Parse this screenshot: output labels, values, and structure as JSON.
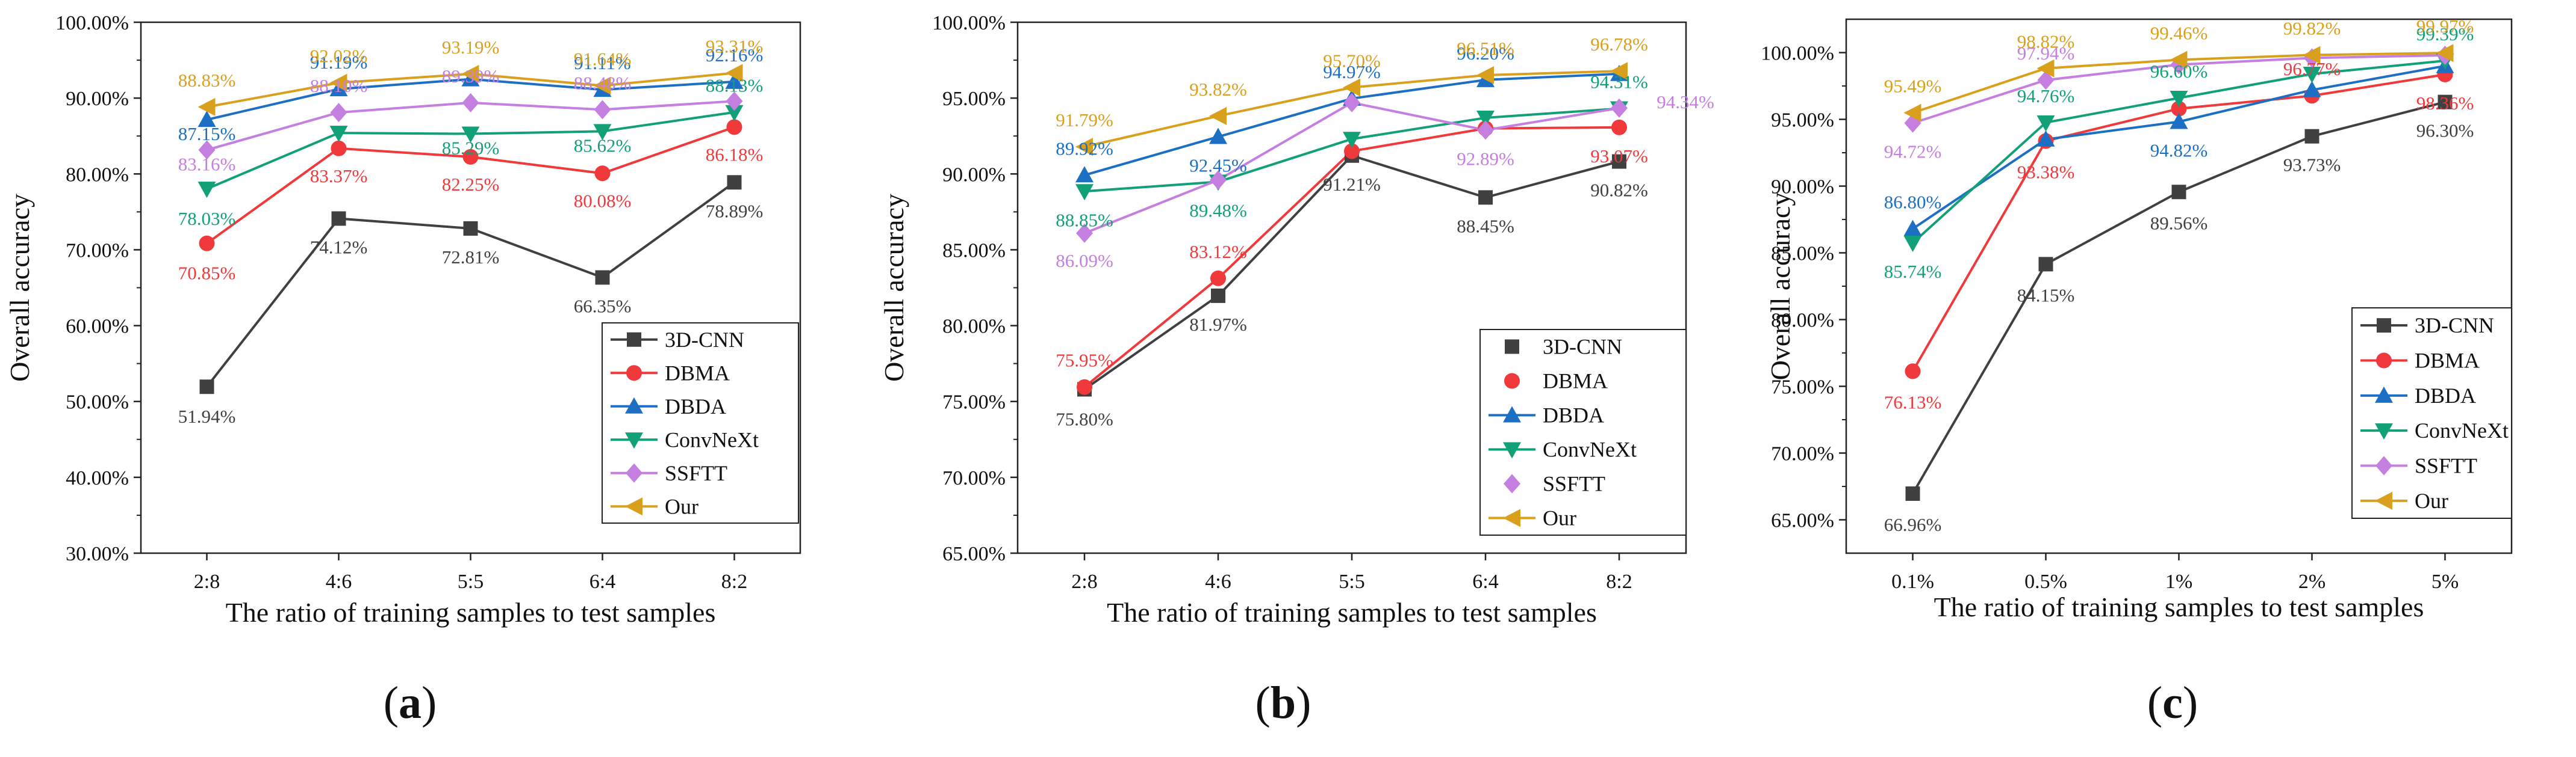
{
  "chart_data": [
    {
      "panel_label": "(a)",
      "type": "line",
      "xlabel": "The ratio of training samples to test samples",
      "ylabel": "Overall accuracy",
      "categories": [
        "2:8",
        "4:6",
        "5:5",
        "6:4",
        "8:2"
      ],
      "ylim": [
        30,
        100
      ],
      "yticks": [
        "30.00%",
        "40.00%",
        "50.00%",
        "60.00%",
        "70.00%",
        "80.00%",
        "90.00%",
        "100.00%"
      ],
      "legend_position": "lower-right",
      "series": [
        {
          "name": "3D-CNN",
          "color": "#404040",
          "marker": "square",
          "values": [
            51.94,
            74.12,
            72.81,
            66.35,
            78.89
          ],
          "labels": [
            "51.94%",
            "74.12%",
            "72.81%",
            "66.35%",
            "78.89%"
          ]
        },
        {
          "name": "DBMA",
          "color": "#f0393b",
          "marker": "circle",
          "values": [
            70.85,
            83.37,
            82.25,
            80.08,
            86.18
          ],
          "labels": [
            "70.85%",
            "83.37%",
            "82.25%",
            "80.08%",
            "86.18%"
          ]
        },
        {
          "name": "DBDA",
          "color": "#1d6fc4",
          "marker": "triangle-up",
          "values": [
            87.15,
            91.19,
            92.5,
            91.11,
            92.16
          ],
          "labels": [
            "87.15%",
            "91.19%",
            "",
            "91.11%",
            "92.16%"
          ]
        },
        {
          "name": "ConvNeXt",
          "color": "#12a079",
          "marker": "triangle-down",
          "values": [
            78.03,
            85.4,
            85.29,
            85.62,
            88.13
          ],
          "labels": [
            "78.03%",
            "",
            "85.29%",
            "85.62%",
            "88.13%"
          ]
        },
        {
          "name": "SSFTT",
          "color": "#c47fe0",
          "marker": "diamond",
          "values": [
            83.16,
            88.1,
            89.39,
            88.48,
            89.6
          ],
          "labels": [
            "83.16%",
            "88.10%",
            "89.39%",
            "88.48%",
            ""
          ]
        },
        {
          "name": "Our",
          "color": "#d9a01e",
          "marker": "triangle-left",
          "values": [
            88.83,
            92.02,
            93.19,
            91.64,
            93.31
          ],
          "labels": [
            "88.83%",
            "92.02%",
            "93.19%",
            "91.64%",
            "93.31%"
          ]
        }
      ]
    },
    {
      "panel_label": "(b)",
      "type": "line",
      "xlabel": "The ratio of training samples to test samples",
      "ylabel": "Overall accuracy",
      "categories": [
        "2:8",
        "4:6",
        "5:5",
        "6:4",
        "8:2"
      ],
      "ylim": [
        65,
        100
      ],
      "yticks": [
        "65.00%",
        "70.00%",
        "75.00%",
        "80.00%",
        "85.00%",
        "90.00%",
        "95.00%",
        "100.00%"
      ],
      "legend_position": "lower-right",
      "series": [
        {
          "name": "3D-CNN",
          "color": "#404040",
          "marker": "square",
          "values": [
            75.8,
            81.97,
            91.21,
            88.45,
            90.82
          ],
          "labels": [
            "75.80%",
            "81.97%",
            "91.21%",
            "88.45%",
            "90.82%"
          ]
        },
        {
          "name": "DBMA",
          "color": "#f0393b",
          "marker": "circle",
          "values": [
            75.95,
            83.12,
            91.5,
            93.0,
            93.07
          ],
          "labels": [
            "75.95%",
            "83.12%",
            "",
            "",
            "93.07%"
          ]
        },
        {
          "name": "DBDA",
          "color": "#1d6fc4",
          "marker": "triangle-up",
          "values": [
            89.92,
            92.45,
            94.97,
            96.2,
            96.6
          ],
          "labels": [
            "89.92%",
            "92.45%",
            "94.97%",
            "96.20%",
            ""
          ]
        },
        {
          "name": "ConvNeXt",
          "color": "#12a079",
          "marker": "triangle-down",
          "values": [
            88.85,
            89.48,
            92.3,
            93.7,
            94.31
          ],
          "labels": [
            "88.85%",
            "89.48%",
            "",
            "",
            "94.31%"
          ]
        },
        {
          "name": "SSFTT",
          "color": "#c47fe0",
          "marker": "diamond",
          "values": [
            86.09,
            89.6,
            94.7,
            92.89,
            94.34
          ],
          "labels": [
            "86.09%",
            "",
            "",
            "92.89%",
            "94.34%"
          ]
        },
        {
          "name": "Our",
          "color": "#d9a01e",
          "marker": "triangle-left",
          "values": [
            91.79,
            93.82,
            95.7,
            96.51,
            96.78
          ],
          "labels": [
            "91.79%",
            "93.82%",
            "95.70%",
            "96.51%",
            "96.78%"
          ]
        }
      ]
    },
    {
      "panel_label": "(c)",
      "type": "line",
      "xlabel": "The ratio of training samples to test samples",
      "ylabel": "Overall accuracy",
      "categories": [
        "0.1%",
        "0.5%",
        "1%",
        "2%",
        "5%"
      ],
      "ylim": [
        62.5,
        102.5
      ],
      "yticks": [
        "65.00%",
        "70.00%",
        "75.00%",
        "80.00%",
        "85.00%",
        "90.00%",
        "95.00%",
        "100.00%"
      ],
      "ytick_values": [
        65,
        70,
        75,
        80,
        85,
        90,
        95,
        100
      ],
      "legend_position": "lower-right",
      "series": [
        {
          "name": "3D-CNN",
          "color": "#404040",
          "marker": "square",
          "values": [
            66.96,
            84.15,
            89.56,
            93.73,
            96.3
          ],
          "labels": [
            "66.96%",
            "84.15%",
            "89.56%",
            "93.73%",
            "96.30%"
          ]
        },
        {
          "name": "DBMA",
          "color": "#f0393b",
          "marker": "circle",
          "values": [
            76.13,
            93.38,
            95.8,
            96.77,
            98.36
          ],
          "labels": [
            "76.13%",
            "93.38%",
            "",
            "96.77%",
            "98.36%"
          ]
        },
        {
          "name": "DBDA",
          "color": "#1d6fc4",
          "marker": "triangle-up",
          "values": [
            86.8,
            93.5,
            94.82,
            97.2,
            99.0
          ],
          "labels": [
            "86.80%",
            "",
            "94.82%",
            "",
            ""
          ]
        },
        {
          "name": "ConvNeXt",
          "color": "#12a079",
          "marker": "triangle-down",
          "values": [
            85.74,
            94.76,
            96.6,
            98.4,
            99.39
          ],
          "labels": [
            "85.74%",
            "94.76%",
            "96.60%",
            "",
            "99.39%"
          ]
        },
        {
          "name": "SSFTT",
          "color": "#c47fe0",
          "marker": "diamond",
          "values": [
            94.72,
            97.94,
            99.1,
            99.6,
            99.8
          ],
          "labels": [
            "94.72%",
            "97.94%",
            "",
            "",
            ""
          ]
        },
        {
          "name": "Our",
          "color": "#d9a01e",
          "marker": "triangle-left",
          "values": [
            95.49,
            98.82,
            99.46,
            99.82,
            99.97
          ],
          "labels": [
            "95.49%",
            "98.82%",
            "99.46%",
            "99.82%",
            "99.97%"
          ]
        }
      ]
    }
  ]
}
